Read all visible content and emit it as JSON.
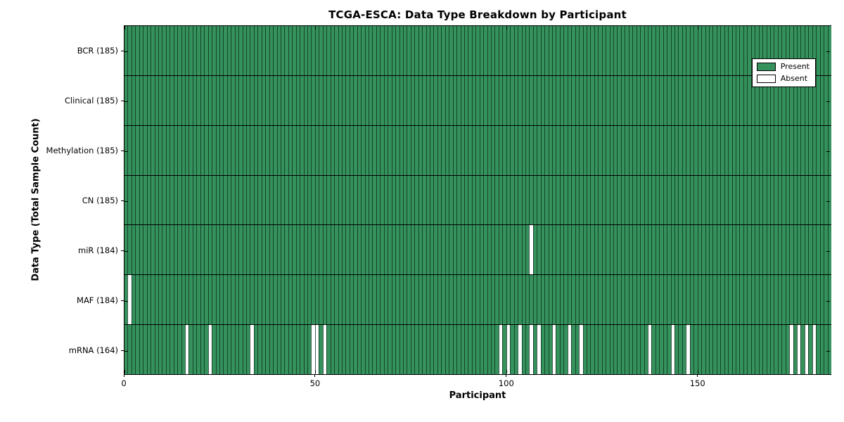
{
  "title": "TCGA-ESCA: Data Type Breakdown by Participant",
  "colors": {
    "present": "#35925C",
    "absent": "#FFFFFF",
    "cell_edge": "rgba(10,40,25,0.75)",
    "frame": "#000000"
  },
  "legend": {
    "present_label": "Present",
    "absent_label": "Absent"
  },
  "chart_data": {
    "type": "heatmap",
    "title": "TCGA-ESCA: Data Type Breakdown by Participant",
    "xlabel": "Participant",
    "ylabel": "Data Type (Total Sample Count)",
    "n_participants": 185,
    "x_ticks": [
      0,
      50,
      100,
      150
    ],
    "x_tick_labels": [
      "0",
      "50",
      "100",
      "150"
    ],
    "legend_position": "upper right",
    "grid": false,
    "cell_states": [
      "Present",
      "Absent"
    ],
    "rows": [
      {
        "name": "BCR",
        "label": "BCR (185)",
        "total": 185,
        "absent_participants": []
      },
      {
        "name": "Clinical",
        "label": "Clinical (185)",
        "total": 185,
        "absent_participants": []
      },
      {
        "name": "Methylation",
        "label": "Methylation (185)",
        "total": 185,
        "absent_participants": []
      },
      {
        "name": "CN",
        "label": "CN (185)",
        "total": 185,
        "absent_participants": []
      },
      {
        "name": "miR",
        "label": "miR (184)",
        "total": 184,
        "absent_participants": [
          106
        ]
      },
      {
        "name": "MAF",
        "label": "MAF (184)",
        "total": 184,
        "absent_participants": [
          1
        ]
      },
      {
        "name": "mRNA",
        "label": "mRNA (164)",
        "total": 164,
        "absent_participants": [
          16,
          22,
          33,
          49,
          50,
          52,
          98,
          100,
          103,
          106,
          108,
          112,
          116,
          119,
          137,
          143,
          147,
          174,
          176,
          178,
          180
        ]
      }
    ],
    "legend_entries": [
      {
        "label": "Present",
        "color": "#35925C"
      },
      {
        "label": "Absent",
        "color": "#FFFFFF"
      }
    ]
  }
}
